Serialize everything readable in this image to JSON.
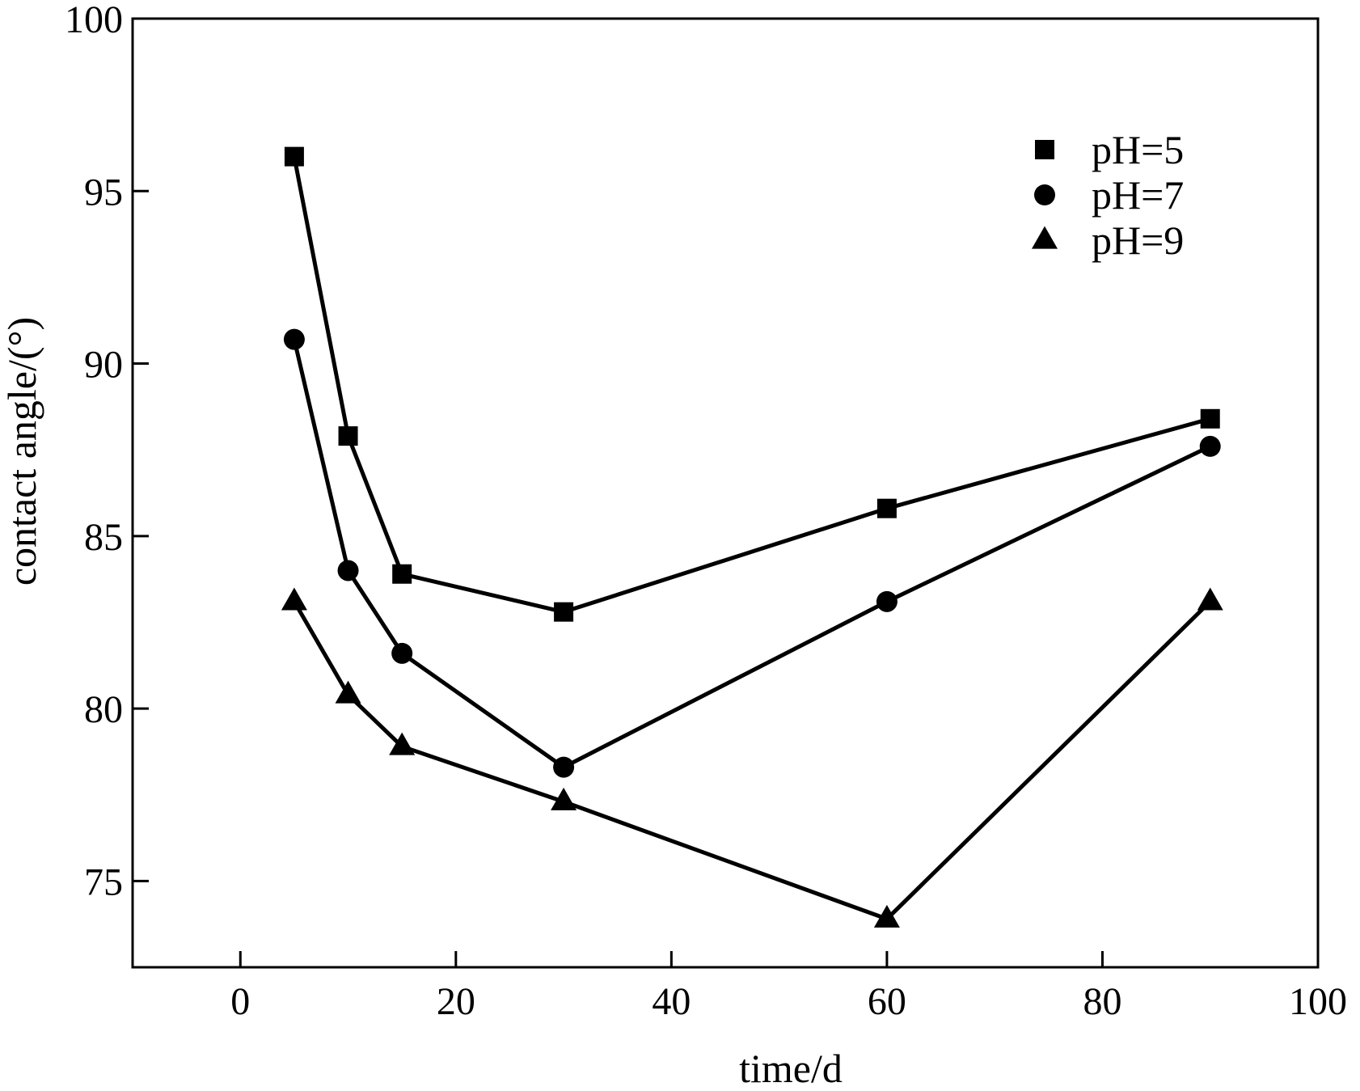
{
  "chart_data": {
    "type": "line",
    "xlabel": "time/d",
    "ylabel": "contact angle/(°)",
    "xlim": [
      -10,
      100
    ],
    "ylim": [
      72.5,
      100
    ],
    "xticks": [
      0,
      20,
      40,
      60,
      80,
      100
    ],
    "yticks": [
      75,
      80,
      85,
      90,
      95,
      100
    ],
    "x": [
      5,
      10,
      15,
      30,
      60,
      90
    ],
    "legend_position": "top-right",
    "series": [
      {
        "name": "pH=5",
        "marker": "square",
        "color": "#000000",
        "values": [
          96.0,
          87.9,
          83.9,
          82.8,
          85.8,
          88.4
        ]
      },
      {
        "name": "pH=7",
        "marker": "circle",
        "color": "#000000",
        "values": [
          90.7,
          84.0,
          81.6,
          78.3,
          83.1,
          87.6
        ]
      },
      {
        "name": "pH=9",
        "marker": "triangle",
        "color": "#000000",
        "values": [
          83.1,
          80.4,
          78.9,
          77.3,
          73.9,
          83.1
        ]
      }
    ]
  }
}
